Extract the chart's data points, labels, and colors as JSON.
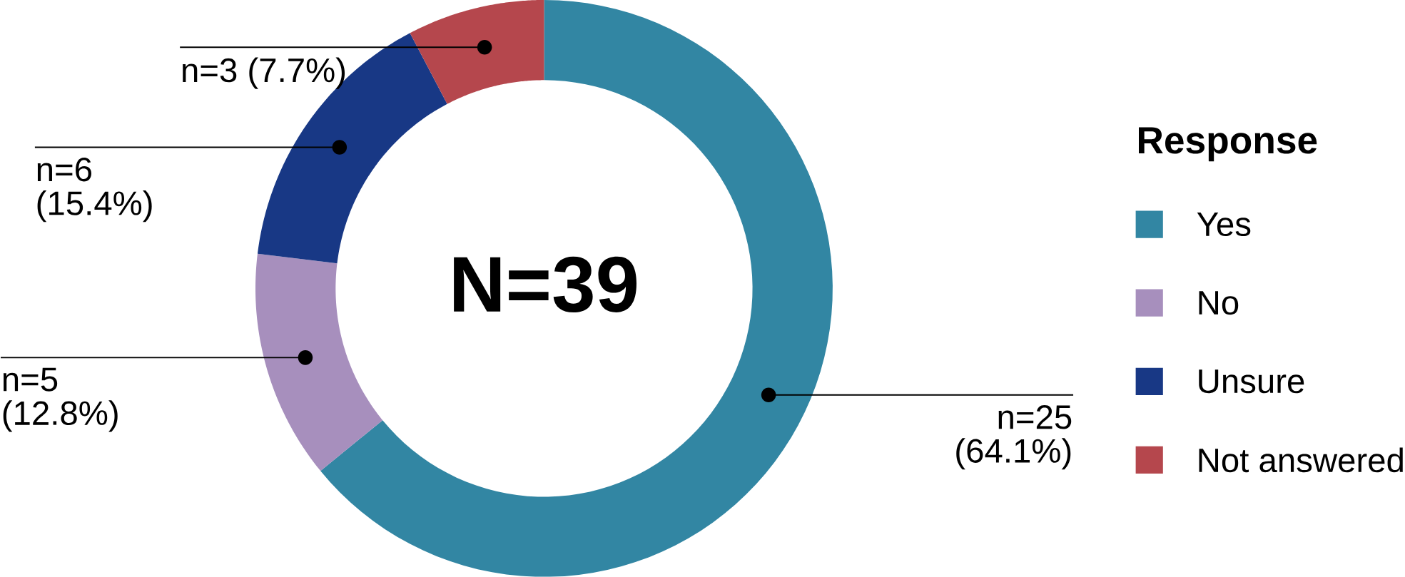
{
  "chart_data": {
    "type": "donut",
    "categories": [
      "Yes",
      "No",
      "Unsure",
      "Not answered"
    ],
    "values": [
      25,
      5,
      6,
      3
    ],
    "colors": [
      "#3286a3",
      "#a78fbd",
      "#183885",
      "#b5474d"
    ],
    "value_labels": [
      "n=25 (64.1%)",
      "n=5 (12.8%)",
      "n=6 (15.4%)",
      "n=3 (7.7%)"
    ],
    "annotations": [
      "N=39"
    ],
    "legend_title": "Response",
    "legend": "right"
  }
}
